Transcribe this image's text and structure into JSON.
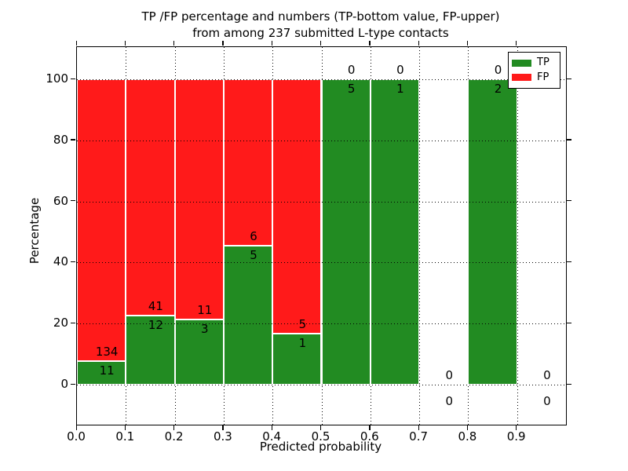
{
  "chart_data": {
    "type": "bar",
    "stacked": true,
    "normalized": "percent",
    "title_lines": [
      "TP /FP percentage and numbers (TP-bottom value, FP-upper)",
      "from among 237 submitted L-type contacts"
    ],
    "total_submitted": 237,
    "xlabel": "Predicted probability",
    "ylabel": "Percentage",
    "xlim": [
      0.0,
      1.0
    ],
    "ylim": [
      -13.1,
      110.5
    ],
    "grid": true,
    "bin_edges": [
      0.0,
      0.1,
      0.2,
      0.3,
      0.4,
      0.5,
      0.6,
      0.7,
      0.8,
      0.9,
      1.0
    ],
    "series": [
      {
        "name": "TP",
        "color": "#228B22",
        "values": [
          11,
          12,
          3,
          5,
          1,
          5,
          1,
          0,
          2,
          0
        ]
      },
      {
        "name": "FP",
        "color": "#FF1A1A",
        "values": [
          134,
          41,
          11,
          6,
          5,
          0,
          0,
          0,
          0,
          0
        ]
      }
    ],
    "bar_value_labels_note": "TP value printed below green top edge, FP value printed above it",
    "xticks": {
      "values": [
        0.0,
        0.1,
        0.2,
        0.3,
        0.4,
        0.5,
        0.6,
        0.7,
        0.8,
        0.9
      ],
      "labels": [
        "0.0",
        "0.1",
        "0.2",
        "0.3",
        "0.4",
        "0.5",
        "0.6",
        "0.7",
        "0.8",
        "0.9"
      ]
    },
    "yticks": {
      "values": [
        0,
        20,
        40,
        60,
        80,
        100
      ],
      "labels": [
        "0",
        "20",
        "40",
        "60",
        "80",
        "100"
      ]
    },
    "legend": {
      "position": "upper right",
      "entries": [
        {
          "label": "TP"
        },
        {
          "label": "FP"
        }
      ]
    },
    "colors": {
      "tp": "#228B22",
      "fp": "#FF1A1A",
      "grid": "#000000",
      "bar_edge": "#ffffff",
      "text": "#000000"
    }
  }
}
